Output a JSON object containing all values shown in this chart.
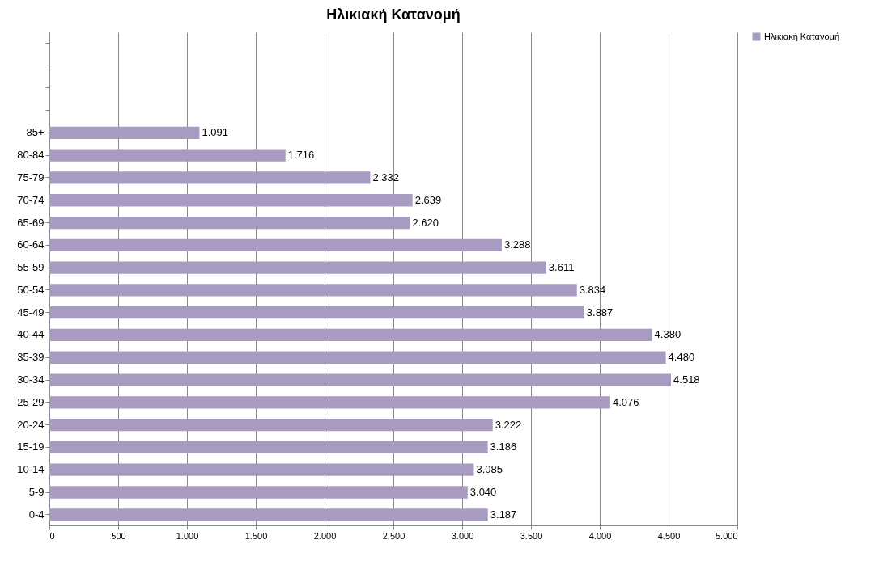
{
  "chart_data": {
    "type": "bar",
    "orientation": "horizontal",
    "title": "Ηλικιακή Κατανομή",
    "categories": [
      null,
      null,
      null,
      null,
      "85+",
      "80-84",
      "75-79",
      "70-74",
      "65-69",
      "60-64",
      "55-59",
      "50-54",
      "45-49",
      "40-44",
      "35-39",
      "30-34",
      "25-29",
      "20-24",
      "15-19",
      "10-14",
      "5-9",
      "0-4"
    ],
    "series": [
      {
        "name": "Ηλικιακή Κατανομή",
        "color": "#a89bc1",
        "values": [
          null,
          null,
          null,
          null,
          1091,
          1716,
          2332,
          2639,
          2620,
          3288,
          3611,
          3834,
          3887,
          4380,
          4480,
          4518,
          4076,
          3222,
          3186,
          3085,
          3040,
          3187
        ],
        "value_labels": [
          null,
          null,
          null,
          null,
          "1.091",
          "1.716",
          "2.332",
          "2.639",
          "2.620",
          "3.288",
          "3.611",
          "3.834",
          "3.887",
          "4.380",
          "4.480",
          "4.518",
          "4.076",
          "3.222",
          "3.186",
          "3.085",
          "3.040",
          "3.187"
        ]
      }
    ],
    "xlim": [
      0,
      5000
    ],
    "xticks": [
      0,
      {
        "value": 500,
        "label": "500"
      },
      {
        "value": 1000,
        "label": "1.000"
      },
      {
        "value": 1500,
        "label": "1.500"
      },
      {
        "value": 2000,
        "label": "2.000"
      },
      {
        "value": 2500,
        "label": "2.500"
      },
      {
        "value": 3000,
        "label": "3.000"
      },
      {
        "value": 3500,
        "label": "3.500"
      },
      {
        "value": 4000,
        "label": "4.000"
      },
      {
        "value": 4500,
        "label": "4.500"
      },
      {
        "value": 5000,
        "label": "5.000"
      }
    ],
    "grid": "x",
    "legend": "right"
  }
}
